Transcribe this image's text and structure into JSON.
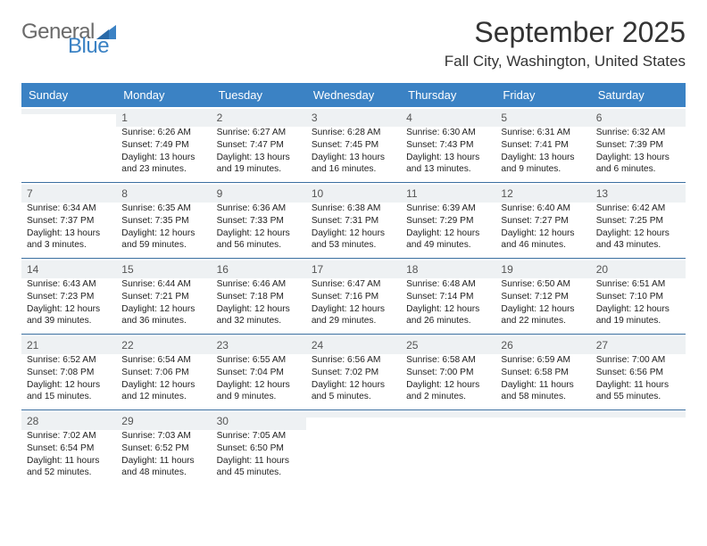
{
  "logo": {
    "main": "General",
    "sub": "Blue"
  },
  "title": "September 2025",
  "location": "Fall City, Washington, United States",
  "colors": {
    "header_bg": "#3b82c4",
    "header_text": "#ffffff",
    "rule": "#3b6fa0",
    "shaded_bg": "#eef1f3",
    "text": "#222222",
    "daynum": "#555555",
    "logo_gray": "#6a6a6a",
    "logo_blue": "#3b82c4"
  },
  "day_names": [
    "Sunday",
    "Monday",
    "Tuesday",
    "Wednesday",
    "Thursday",
    "Friday",
    "Saturday"
  ],
  "weeks": [
    [
      {
        "n": "",
        "sr": "",
        "ss": "",
        "dl": ""
      },
      {
        "n": "1",
        "sr": "Sunrise: 6:26 AM",
        "ss": "Sunset: 7:49 PM",
        "dl": "Daylight: 13 hours and 23 minutes."
      },
      {
        "n": "2",
        "sr": "Sunrise: 6:27 AM",
        "ss": "Sunset: 7:47 PM",
        "dl": "Daylight: 13 hours and 19 minutes."
      },
      {
        "n": "3",
        "sr": "Sunrise: 6:28 AM",
        "ss": "Sunset: 7:45 PM",
        "dl": "Daylight: 13 hours and 16 minutes."
      },
      {
        "n": "4",
        "sr": "Sunrise: 6:30 AM",
        "ss": "Sunset: 7:43 PM",
        "dl": "Daylight: 13 hours and 13 minutes."
      },
      {
        "n": "5",
        "sr": "Sunrise: 6:31 AM",
        "ss": "Sunset: 7:41 PM",
        "dl": "Daylight: 13 hours and 9 minutes."
      },
      {
        "n": "6",
        "sr": "Sunrise: 6:32 AM",
        "ss": "Sunset: 7:39 PM",
        "dl": "Daylight: 13 hours and 6 minutes."
      }
    ],
    [
      {
        "n": "7",
        "sr": "Sunrise: 6:34 AM",
        "ss": "Sunset: 7:37 PM",
        "dl": "Daylight: 13 hours and 3 minutes."
      },
      {
        "n": "8",
        "sr": "Sunrise: 6:35 AM",
        "ss": "Sunset: 7:35 PM",
        "dl": "Daylight: 12 hours and 59 minutes."
      },
      {
        "n": "9",
        "sr": "Sunrise: 6:36 AM",
        "ss": "Sunset: 7:33 PM",
        "dl": "Daylight: 12 hours and 56 minutes."
      },
      {
        "n": "10",
        "sr": "Sunrise: 6:38 AM",
        "ss": "Sunset: 7:31 PM",
        "dl": "Daylight: 12 hours and 53 minutes."
      },
      {
        "n": "11",
        "sr": "Sunrise: 6:39 AM",
        "ss": "Sunset: 7:29 PM",
        "dl": "Daylight: 12 hours and 49 minutes."
      },
      {
        "n": "12",
        "sr": "Sunrise: 6:40 AM",
        "ss": "Sunset: 7:27 PM",
        "dl": "Daylight: 12 hours and 46 minutes."
      },
      {
        "n": "13",
        "sr": "Sunrise: 6:42 AM",
        "ss": "Sunset: 7:25 PM",
        "dl": "Daylight: 12 hours and 43 minutes."
      }
    ],
    [
      {
        "n": "14",
        "sr": "Sunrise: 6:43 AM",
        "ss": "Sunset: 7:23 PM",
        "dl": "Daylight: 12 hours and 39 minutes."
      },
      {
        "n": "15",
        "sr": "Sunrise: 6:44 AM",
        "ss": "Sunset: 7:21 PM",
        "dl": "Daylight: 12 hours and 36 minutes."
      },
      {
        "n": "16",
        "sr": "Sunrise: 6:46 AM",
        "ss": "Sunset: 7:18 PM",
        "dl": "Daylight: 12 hours and 32 minutes."
      },
      {
        "n": "17",
        "sr": "Sunrise: 6:47 AM",
        "ss": "Sunset: 7:16 PM",
        "dl": "Daylight: 12 hours and 29 minutes."
      },
      {
        "n": "18",
        "sr": "Sunrise: 6:48 AM",
        "ss": "Sunset: 7:14 PM",
        "dl": "Daylight: 12 hours and 26 minutes."
      },
      {
        "n": "19",
        "sr": "Sunrise: 6:50 AM",
        "ss": "Sunset: 7:12 PM",
        "dl": "Daylight: 12 hours and 22 minutes."
      },
      {
        "n": "20",
        "sr": "Sunrise: 6:51 AM",
        "ss": "Sunset: 7:10 PM",
        "dl": "Daylight: 12 hours and 19 minutes."
      }
    ],
    [
      {
        "n": "21",
        "sr": "Sunrise: 6:52 AM",
        "ss": "Sunset: 7:08 PM",
        "dl": "Daylight: 12 hours and 15 minutes."
      },
      {
        "n": "22",
        "sr": "Sunrise: 6:54 AM",
        "ss": "Sunset: 7:06 PM",
        "dl": "Daylight: 12 hours and 12 minutes."
      },
      {
        "n": "23",
        "sr": "Sunrise: 6:55 AM",
        "ss": "Sunset: 7:04 PM",
        "dl": "Daylight: 12 hours and 9 minutes."
      },
      {
        "n": "24",
        "sr": "Sunrise: 6:56 AM",
        "ss": "Sunset: 7:02 PM",
        "dl": "Daylight: 12 hours and 5 minutes."
      },
      {
        "n": "25",
        "sr": "Sunrise: 6:58 AM",
        "ss": "Sunset: 7:00 PM",
        "dl": "Daylight: 12 hours and 2 minutes."
      },
      {
        "n": "26",
        "sr": "Sunrise: 6:59 AM",
        "ss": "Sunset: 6:58 PM",
        "dl": "Daylight: 11 hours and 58 minutes."
      },
      {
        "n": "27",
        "sr": "Sunrise: 7:00 AM",
        "ss": "Sunset: 6:56 PM",
        "dl": "Daylight: 11 hours and 55 minutes."
      }
    ],
    [
      {
        "n": "28",
        "sr": "Sunrise: 7:02 AM",
        "ss": "Sunset: 6:54 PM",
        "dl": "Daylight: 11 hours and 52 minutes."
      },
      {
        "n": "29",
        "sr": "Sunrise: 7:03 AM",
        "ss": "Sunset: 6:52 PM",
        "dl": "Daylight: 11 hours and 48 minutes."
      },
      {
        "n": "30",
        "sr": "Sunrise: 7:05 AM",
        "ss": "Sunset: 6:50 PM",
        "dl": "Daylight: 11 hours and 45 minutes."
      },
      {
        "n": "",
        "sr": "",
        "ss": "",
        "dl": ""
      },
      {
        "n": "",
        "sr": "",
        "ss": "",
        "dl": ""
      },
      {
        "n": "",
        "sr": "",
        "ss": "",
        "dl": ""
      },
      {
        "n": "",
        "sr": "",
        "ss": "",
        "dl": ""
      }
    ]
  ]
}
